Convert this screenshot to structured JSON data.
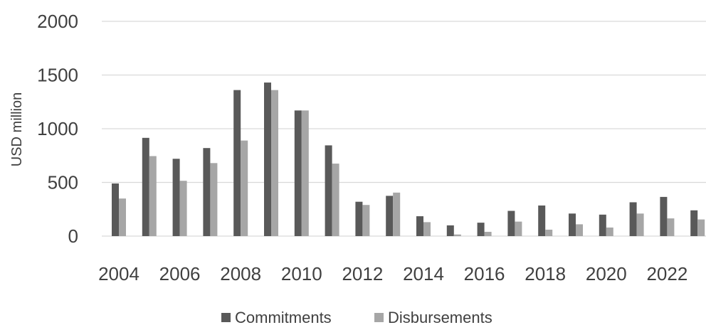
{
  "chart_data": {
    "type": "bar",
    "ylabel": "USD million",
    "ylim": [
      0,
      2000
    ],
    "yticks": [
      "0",
      "500",
      "1000",
      "1500",
      "2000"
    ],
    "categories": [
      "2004",
      "2005",
      "2006",
      "2007",
      "2008",
      "2009",
      "2010",
      "2011",
      "2012",
      "2013",
      "2014",
      "2015",
      "2016",
      "2017",
      "2018",
      "2019",
      "2020",
      "2021",
      "2022",
      "2023"
    ],
    "xtick_labels": [
      "2004",
      "2006",
      "2008",
      "2010",
      "2012",
      "2014",
      "2016",
      "2018",
      "2020",
      "2022"
    ],
    "grid": true,
    "legend_position": "bottom",
    "series": [
      {
        "name": "Commitments",
        "color": "#595959",
        "values": [
          490,
          915,
          720,
          820,
          1360,
          1430,
          1170,
          845,
          320,
          375,
          185,
          100,
          125,
          235,
          285,
          210,
          200,
          315,
          365,
          240
        ]
      },
      {
        "name": "Disbursements",
        "color": "#a6a6a6",
        "values": [
          350,
          745,
          515,
          680,
          890,
          1360,
          1170,
          675,
          290,
          405,
          130,
          15,
          40,
          135,
          60,
          110,
          80,
          210,
          165,
          155
        ]
      }
    ]
  }
}
